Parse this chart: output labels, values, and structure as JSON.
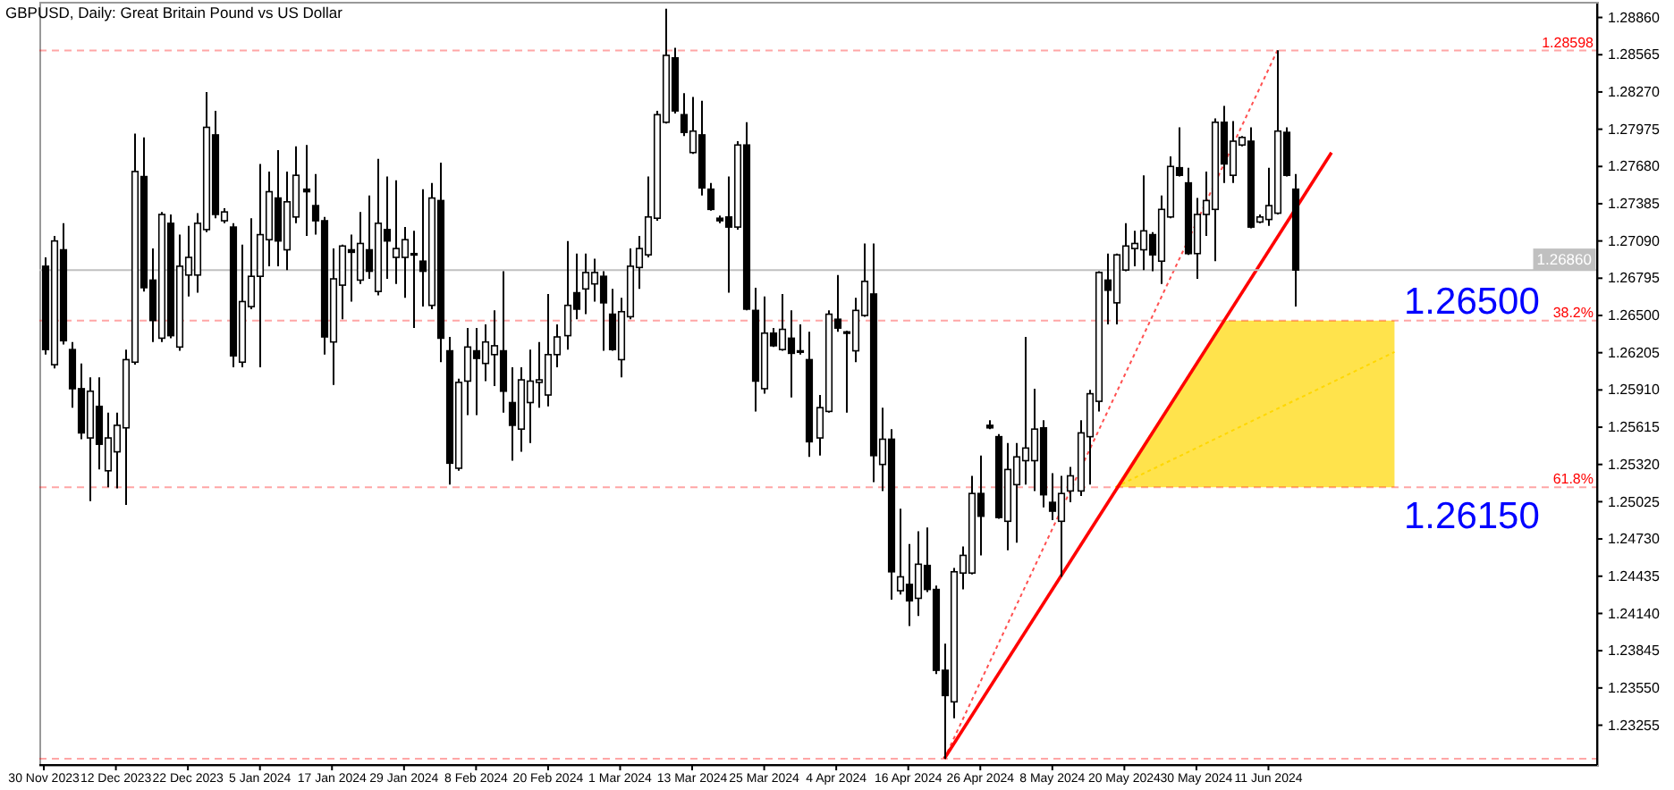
{
  "chart_data": {
    "type": "candlestick",
    "title": "GBPUSD, Daily: Great Britain Pound vs US Dollar",
    "categories": [
      "30 Nov 2023",
      null,
      null,
      null,
      null,
      null,
      null,
      null,
      "12 Dec 2023",
      null,
      null,
      null,
      null,
      null,
      null,
      null,
      "22 Dec 2023",
      null,
      null,
      null,
      null,
      null,
      null,
      null,
      "5 Jan 2024",
      null,
      null,
      null,
      null,
      null,
      null,
      null,
      "17 Jan 2024",
      null,
      null,
      null,
      null,
      null,
      null,
      null,
      "29 Jan 2024",
      null,
      null,
      null,
      null,
      null,
      null,
      null,
      "8 Feb 2024",
      null,
      null,
      null,
      null,
      null,
      null,
      null,
      "20 Feb 2024",
      null,
      null,
      null,
      null,
      null,
      null,
      null,
      "1 Mar 2024",
      null,
      null,
      null,
      null,
      null,
      null,
      null,
      "13 Mar 2024",
      null,
      null,
      null,
      null,
      null,
      null,
      null,
      "25 Mar 2024",
      null,
      null,
      null,
      null,
      null,
      null,
      null,
      "4 Apr 2024",
      null,
      null,
      null,
      null,
      null,
      null,
      null,
      "16 Apr 2024",
      null,
      null,
      null,
      null,
      null,
      null,
      null,
      "26 Apr 2024",
      null,
      null,
      null,
      null,
      null,
      null,
      null,
      "8 May 2024",
      null,
      null,
      null,
      null,
      null,
      null,
      null,
      "20 May 2024",
      null,
      null,
      null,
      null,
      null,
      null,
      null,
      "30 May 2024",
      null,
      null,
      null,
      null,
      null,
      null,
      null,
      "11 Jun 2024",
      null,
      null,
      null,
      null,
      null,
      null,
      null,
      null,
      null,
      null,
      null,
      null,
      null,
      null,
      null,
      null,
      null,
      null,
      null,
      null,
      null,
      null,
      null,
      null,
      null,
      null,
      null,
      null,
      null,
      null,
      null,
      null,
      null,
      null,
      null,
      null
    ],
    "ohlc": [
      [
        1.2689,
        1.2696,
        1.2619,
        1.2623
      ],
      [
        1.2611,
        1.2713,
        1.2608,
        1.2709
      ],
      [
        1.2702,
        1.2723,
        1.2627,
        1.263
      ],
      [
        1.2623,
        1.2629,
        1.2577,
        1.2592
      ],
      [
        1.2592,
        1.2612,
        1.2552,
        1.2557
      ],
      [
        1.2553,
        1.2601,
        1.2503,
        1.259
      ],
      [
        1.2578,
        1.2601,
        1.2528,
        1.2548
      ],
      [
        1.2527,
        1.2573,
        1.2514,
        1.2553
      ],
      [
        1.2542,
        1.2573,
        1.2513,
        1.2563
      ],
      [
        1.2561,
        1.2623,
        1.25,
        1.2615
      ],
      [
        1.2613,
        1.2794,
        1.2611,
        1.2764
      ],
      [
        1.276,
        1.2791,
        1.2669,
        1.2672
      ],
      [
        1.2678,
        1.2703,
        1.2629,
        1.2646
      ],
      [
        1.2632,
        1.2732,
        1.2629,
        1.273
      ],
      [
        1.2723,
        1.273,
        1.2632,
        1.2634
      ],
      [
        1.2625,
        1.2714,
        1.2622,
        1.2689
      ],
      [
        1.2682,
        1.2721,
        1.2665,
        1.2696
      ],
      [
        1.2682,
        1.2731,
        1.2668,
        1.2723
      ],
      [
        1.2718,
        1.2827,
        1.2716,
        1.2799
      ],
      [
        1.2793,
        1.2812,
        1.2727,
        1.273
      ],
      [
        1.2725,
        1.2735,
        1.2723,
        1.2732
      ],
      [
        1.272,
        1.2723,
        1.2609,
        1.2618
      ],
      [
        1.2613,
        1.2706,
        1.2609,
        1.2661
      ],
      [
        1.2657,
        1.2727,
        1.2655,
        1.2681
      ],
      [
        1.2681,
        1.277,
        1.2609,
        1.2714
      ],
      [
        1.271,
        1.2764,
        1.2689,
        1.2748
      ],
      [
        1.2743,
        1.2781,
        1.2689,
        1.2709
      ],
      [
        1.2702,
        1.2764,
        1.2686,
        1.274
      ],
      [
        1.2728,
        1.2784,
        1.2723,
        1.2761
      ],
      [
        1.275,
        1.2785,
        1.2713,
        1.2748
      ],
      [
        1.2737,
        1.2762,
        1.2714,
        1.2725
      ],
      [
        1.2725,
        1.2728,
        1.2619,
        1.2633
      ],
      [
        1.2629,
        1.2703,
        1.2595,
        1.2679
      ],
      [
        1.2674,
        1.2706,
        1.2647,
        1.2705
      ],
      [
        1.2702,
        1.2714,
        1.2661,
        1.27
      ],
      [
        1.2678,
        1.2732,
        1.2675,
        1.2707
      ],
      [
        1.2702,
        1.2745,
        1.2679,
        1.2685
      ],
      [
        1.2669,
        1.2774,
        1.2666,
        1.2723
      ],
      [
        1.2718,
        1.276,
        1.2679,
        1.2709
      ],
      [
        1.2696,
        1.2757,
        1.2675,
        1.2703
      ],
      [
        1.2696,
        1.272,
        1.2664,
        1.271
      ],
      [
        1.2699,
        1.2717,
        1.264,
        1.2698
      ],
      [
        1.2693,
        1.275,
        1.2657,
        1.2685
      ],
      [
        1.2658,
        1.2755,
        1.2655,
        1.2743
      ],
      [
        1.2741,
        1.2771,
        1.2613,
        1.2632
      ],
      [
        1.2622,
        1.2633,
        1.2516,
        1.2533
      ],
      [
        1.2529,
        1.26,
        1.2527,
        1.2597
      ],
      [
        1.2598,
        1.264,
        1.2571,
        1.2625
      ],
      [
        1.2622,
        1.264,
        1.2571,
        1.2616
      ],
      [
        1.2612,
        1.2643,
        1.2598,
        1.2629
      ],
      [
        1.2619,
        1.2654,
        1.2594,
        1.2626
      ],
      [
        1.2622,
        1.2685,
        1.2573,
        1.259
      ],
      [
        1.2581,
        1.2609,
        1.2535,
        1.2563
      ],
      [
        1.256,
        1.2609,
        1.2542,
        1.2599
      ],
      [
        1.2581,
        1.2623,
        1.2549,
        1.2598
      ],
      [
        1.2597,
        1.2629,
        1.2577,
        1.2599
      ],
      [
        1.2587,
        1.2667,
        1.2578,
        1.2619
      ],
      [
        1.2619,
        1.2643,
        1.2609,
        1.2633
      ],
      [
        1.2634,
        1.2709,
        1.2623,
        1.2658
      ],
      [
        1.2668,
        1.2699,
        1.2647,
        1.2655
      ],
      [
        1.2671,
        1.2699,
        1.2651,
        1.2684
      ],
      [
        1.2675,
        1.2695,
        1.2661,
        1.2684
      ],
      [
        1.2681,
        1.2685,
        1.2622,
        1.266
      ],
      [
        1.2651,
        1.2671,
        1.2622,
        1.2623
      ],
      [
        1.2615,
        1.2664,
        1.2601,
        1.2653
      ],
      [
        1.2649,
        1.2703,
        1.2647,
        1.2689
      ],
      [
        1.2688,
        1.2713,
        1.2671,
        1.2703
      ],
      [
        1.2698,
        1.276,
        1.2696,
        1.2728
      ],
      [
        1.2727,
        1.2812,
        1.2725,
        1.2809
      ],
      [
        1.2803,
        1.2893,
        1.2802,
        1.2856
      ],
      [
        1.2854,
        1.2862,
        1.281,
        1.2812
      ],
      [
        1.2809,
        1.2826,
        1.2792,
        1.2795
      ],
      [
        1.2779,
        1.2823,
        1.2778,
        1.2796
      ],
      [
        1.2793,
        1.282,
        1.2745,
        1.2751
      ],
      [
        1.275,
        1.2755,
        1.2733,
        1.2734
      ],
      [
        1.2727,
        1.2729,
        1.2723,
        1.2725
      ],
      [
        1.2728,
        1.276,
        1.2668,
        1.272
      ],
      [
        1.272,
        1.2788,
        1.2718,
        1.2785
      ],
      [
        1.2785,
        1.2803,
        1.2654,
        1.2655
      ],
      [
        1.2654,
        1.2672,
        1.2574,
        1.2598
      ],
      [
        1.2592,
        1.2665,
        1.2588,
        1.2636
      ],
      [
        1.2636,
        1.264,
        1.2625,
        1.2626
      ],
      [
        1.2623,
        1.2667,
        1.2622,
        1.2639
      ],
      [
        1.2632,
        1.2654,
        1.2585,
        1.262
      ],
      [
        1.2622,
        1.2643,
        1.2619,
        1.2621
      ],
      [
        1.2615,
        1.2637,
        1.2538,
        1.255
      ],
      [
        1.2553,
        1.2587,
        1.2539,
        1.2577
      ],
      [
        1.2574,
        1.2654,
        1.2573,
        1.2651
      ],
      [
        1.2647,
        1.2682,
        1.2637,
        1.264
      ],
      [
        1.2637,
        1.2638,
        1.2573,
        1.2636
      ],
      [
        1.2622,
        1.2664,
        1.2613,
        1.2654
      ],
      [
        1.265,
        1.2707,
        1.2649,
        1.2677
      ],
      [
        1.2667,
        1.2707,
        1.2518,
        1.2539
      ],
      [
        1.2532,
        1.2577,
        1.2511,
        1.2552
      ],
      [
        1.2552,
        1.256,
        1.2425,
        1.2447
      ],
      [
        1.2432,
        1.2497,
        1.2429,
        1.2443
      ],
      [
        1.2437,
        1.2469,
        1.2404,
        1.2424
      ],
      [
        1.2426,
        1.2479,
        1.2412,
        1.2453
      ],
      [
        1.2452,
        1.2482,
        1.2431,
        1.2433
      ],
      [
        1.2433,
        1.2436,
        1.2366,
        1.2369
      ],
      [
        1.2369,
        1.239,
        1.2299,
        1.2349
      ],
      [
        1.2344,
        1.245,
        1.2331,
        1.2447
      ],
      [
        1.2446,
        1.2467,
        1.2433,
        1.246
      ],
      [
        1.2446,
        1.2523,
        1.2445,
        1.2509
      ],
      [
        1.2509,
        1.2539,
        1.246,
        1.2491
      ],
      [
        1.2563,
        1.2567,
        1.256,
        1.2561
      ],
      [
        1.2554,
        1.2556,
        1.2489,
        1.249
      ],
      [
        1.2487,
        1.2549,
        1.2464,
        1.2528
      ],
      [
        1.2516,
        1.2549,
        1.247,
        1.2538
      ],
      [
        1.2535,
        1.2633,
        1.2516,
        1.2545
      ],
      [
        1.2535,
        1.2592,
        1.2511,
        1.256
      ],
      [
        1.2561,
        1.2567,
        1.2498,
        1.2508
      ],
      [
        1.2502,
        1.2525,
        1.2488,
        1.2495
      ],
      [
        1.2487,
        1.2523,
        1.2443,
        1.2509
      ],
      [
        1.2511,
        1.253,
        1.2502,
        1.2523
      ],
      [
        1.2511,
        1.2567,
        1.2507,
        1.2557
      ],
      [
        1.2554,
        1.2591,
        1.2516,
        1.2588
      ],
      [
        1.2582,
        1.2685,
        1.2574,
        1.2684
      ],
      [
        1.2678,
        1.2699,
        1.2643,
        1.267
      ],
      [
        1.266,
        1.2699,
        1.2643,
        1.2698
      ],
      [
        1.2686,
        1.2723,
        1.2685,
        1.2705
      ],
      [
        1.2703,
        1.2717,
        1.2689,
        1.2707
      ],
      [
        1.2702,
        1.2761,
        1.2686,
        1.2717
      ],
      [
        1.2714,
        1.2716,
        1.2685,
        1.2698
      ],
      [
        1.2693,
        1.2745,
        1.2675,
        1.2734
      ],
      [
        1.2728,
        1.2776,
        1.2727,
        1.2768
      ],
      [
        1.2767,
        1.2799,
        1.276,
        1.2761
      ],
      [
        1.2755,
        1.2767,
        1.2698,
        1.2699
      ],
      [
        1.2699,
        1.2743,
        1.2679,
        1.273
      ],
      [
        1.273,
        1.2764,
        1.2713,
        1.2741
      ],
      [
        1.2734,
        1.2806,
        1.2693,
        1.2803
      ],
      [
        1.2803,
        1.2816,
        1.2755,
        1.277
      ],
      [
        1.2761,
        1.2804,
        1.2755,
        1.2788
      ],
      [
        1.2785,
        1.2792,
        1.2784,
        1.2791
      ],
      [
        1.2788,
        1.2799,
        1.2719,
        1.272
      ],
      [
        1.2724,
        1.273,
        1.2723,
        1.2728
      ],
      [
        1.2726,
        1.2767,
        1.2721,
        1.2737
      ],
      [
        1.2731,
        1.286,
        1.273,
        1.2796
      ],
      [
        1.2795,
        1.2799,
        1.276,
        1.2761
      ],
      [
        1.275,
        1.2762,
        1.2657,
        1.2686
      ],
      null,
      null,
      null,
      null,
      null,
      null,
      null,
      null,
      null,
      null,
      null,
      null,
      null,
      null,
      null,
      null,
      null,
      null,
      null,
      null,
      null,
      null,
      null,
      null,
      null,
      null,
      null,
      null,
      null,
      null,
      null,
      null,
      null
    ],
    "series": [
      {
        "type": "line",
        "color": "#ffd700",
        "line_style": "dotted",
        "upper": [
          null,
          null,
          null,
          null,
          null,
          null,
          null,
          null,
          null,
          null,
          null,
          null,
          null,
          null,
          null,
          null,
          null,
          null,
          null,
          null,
          null,
          null,
          null,
          null,
          null,
          null,
          null,
          null,
          null,
          null,
          null,
          null,
          null,
          null,
          null,
          null,
          null,
          null,
          null,
          null,
          null,
          null,
          null,
          null,
          null,
          null,
          null,
          null,
          null,
          null,
          null,
          null,
          null,
          null,
          null,
          null,
          null,
          null,
          null,
          null,
          null,
          null,
          null,
          null,
          null,
          null,
          null,
          null,
          null,
          null,
          null,
          null,
          null,
          null,
          null,
          null,
          null,
          null,
          null,
          null,
          null,
          null,
          null,
          null,
          null,
          null,
          null,
          null,
          null,
          null,
          null,
          null,
          null,
          null,
          null,
          null,
          null,
          null,
          null,
          null,
          null,
          null,
          null,
          null,
          null,
          null,
          null,
          null,
          null,
          null,
          null,
          null,
          null,
          null,
          null,
          null,
          null,
          null,
          null,
          1.2514,
          null,
          null,
          null,
          null,
          null,
          null,
          null,
          null,
          null,
          null,
          null,
          1.2646,
          null,
          null,
          null,
          null,
          null,
          null,
          null,
          null,
          null,
          null,
          null,
          null,
          null,
          null,
          null,
          null,
          null,
          null,
          1.2646,
          null,
          null,
          null,
          null,
          null,
          null,
          null,
          null,
          null,
          null,
          null,
          null,
          null,
          null,
          null,
          null,
          null,
          null,
          null,
          null,
          null,
          null
        ],
        "lower": [
          null,
          null,
          null,
          null,
          null,
          null,
          null,
          null,
          null,
          null,
          null,
          null,
          null,
          null,
          null,
          null,
          null,
          null,
          null,
          null,
          null,
          null,
          null,
          null,
          null,
          null,
          null,
          null,
          null,
          null,
          null,
          null,
          null,
          null,
          null,
          null,
          null,
          null,
          null,
          null,
          null,
          null,
          null,
          null,
          null,
          null,
          null,
          null,
          null,
          null,
          null,
          null,
          null,
          null,
          null,
          null,
          null,
          null,
          null,
          null,
          null,
          null,
          null,
          null,
          null,
          null,
          null,
          null,
          null,
          null,
          null,
          null,
          null,
          null,
          null,
          null,
          null,
          null,
          null,
          null,
          null,
          null,
          null,
          null,
          null,
          null,
          null,
          null,
          null,
          null,
          null,
          null,
          null,
          null,
          null,
          null,
          null,
          null,
          null,
          null,
          null,
          null,
          null,
          null,
          null,
          null,
          null,
          null,
          null,
          null,
          null,
          null,
          null,
          null,
          null,
          null,
          null,
          null,
          null,
          1.2514,
          null,
          null,
          null,
          null,
          null,
          null,
          null,
          null,
          null,
          null,
          null,
          1.2514,
          null,
          null,
          null,
          null,
          null,
          null,
          null,
          null,
          null,
          null,
          null,
          null,
          null,
          null,
          null,
          null,
          null,
          null,
          1.2514,
          null,
          null,
          null,
          null,
          null,
          null,
          null,
          null,
          null,
          null,
          null,
          null,
          null,
          null,
          null,
          null,
          null,
          null,
          null,
          null,
          null,
          null
        ],
        "values": [
          null,
          null,
          null,
          null,
          null,
          null,
          null,
          null,
          null,
          null,
          null,
          null,
          null,
          null,
          null,
          null,
          null,
          null,
          null,
          null,
          null,
          null,
          null,
          null,
          null,
          null,
          null,
          null,
          null,
          null,
          null,
          null,
          null,
          null,
          null,
          null,
          null,
          null,
          null,
          null,
          null,
          null,
          null,
          null,
          null,
          null,
          null,
          null,
          null,
          null,
          null,
          null,
          null,
          null,
          null,
          null,
          null,
          null,
          null,
          null,
          null,
          null,
          null,
          null,
          null,
          null,
          null,
          null,
          null,
          null,
          null,
          null,
          null,
          null,
          null,
          null,
          null,
          null,
          null,
          null,
          null,
          null,
          null,
          null,
          null,
          null,
          null,
          null,
          null,
          null,
          null,
          null,
          null,
          null,
          null,
          null,
          null,
          null,
          null,
          null,
          null,
          null,
          null,
          null,
          null,
          null,
          null,
          null,
          null,
          null,
          null,
          null,
          null,
          null,
          null,
          null,
          null,
          null,
          null,
          1.2514,
          null,
          null,
          null,
          null,
          null,
          null,
          null,
          null,
          null,
          null,
          null,
          null,
          null,
          null,
          null,
          null,
          null,
          null,
          null,
          null,
          null,
          null,
          null,
          null,
          null,
          null,
          null,
          null,
          null,
          null,
          1.2621,
          null,
          null,
          null,
          null,
          null,
          null,
          null,
          null,
          null,
          null,
          null,
          null,
          null,
          null,
          null,
          null,
          null,
          null,
          null,
          null,
          null,
          null
        ]
      },
      {
        "type": "line",
        "color": "#ff5050",
        "line_style": "dotted",
        "values": [
          null,
          null,
          null,
          null,
          null,
          null,
          null,
          null,
          null,
          null,
          null,
          null,
          null,
          null,
          null,
          null,
          null,
          null,
          null,
          null,
          null,
          null,
          null,
          null,
          null,
          null,
          null,
          null,
          null,
          null,
          null,
          null,
          null,
          null,
          null,
          null,
          null,
          null,
          null,
          null,
          null,
          null,
          null,
          null,
          null,
          null,
          null,
          null,
          null,
          null,
          null,
          null,
          null,
          null,
          null,
          null,
          null,
          null,
          null,
          null,
          null,
          null,
          null,
          null,
          null,
          null,
          null,
          null,
          null,
          null,
          null,
          null,
          null,
          null,
          null,
          null,
          null,
          null,
          null,
          null,
          null,
          null,
          null,
          null,
          null,
          null,
          null,
          null,
          null,
          null,
          null,
          null,
          null,
          null,
          null,
          null,
          null,
          null,
          null,
          null,
          1.2299,
          null,
          null,
          null,
          null,
          null,
          null,
          null,
          null,
          null,
          null,
          null,
          null,
          null,
          null,
          null,
          null,
          null,
          null,
          null,
          null,
          null,
          null,
          null,
          null,
          null,
          null,
          null,
          null,
          null,
          null,
          null,
          null,
          null,
          null,
          null,
          null,
          1.286,
          null,
          null,
          null,
          null,
          null,
          null,
          null,
          null,
          null,
          null,
          null,
          null,
          null,
          null,
          null,
          null,
          null,
          null,
          null,
          null,
          null,
          null,
          null,
          null,
          null,
          null,
          null,
          null,
          null,
          null,
          null,
          null,
          null,
          null,
          null
        ]
      },
      {
        "type": "line",
        "color": "#ff0000",
        "line_style": "solid",
        "values": [
          null,
          null,
          null,
          null,
          null,
          null,
          null,
          null,
          null,
          null,
          null,
          null,
          null,
          null,
          null,
          null,
          null,
          null,
          null,
          null,
          null,
          null,
          null,
          null,
          null,
          null,
          null,
          null,
          null,
          null,
          null,
          null,
          null,
          null,
          null,
          null,
          null,
          null,
          null,
          null,
          null,
          null,
          null,
          null,
          null,
          null,
          null,
          null,
          null,
          null,
          null,
          null,
          null,
          null,
          null,
          null,
          null,
          null,
          null,
          null,
          null,
          null,
          null,
          null,
          null,
          null,
          null,
          null,
          null,
          null,
          null,
          null,
          null,
          null,
          null,
          null,
          null,
          null,
          null,
          null,
          null,
          null,
          null,
          null,
          null,
          null,
          null,
          null,
          null,
          null,
          null,
          null,
          null,
          null,
          null,
          null,
          null,
          null,
          null,
          null,
          1.2299,
          null,
          null,
          null,
          null,
          null,
          null,
          null,
          null,
          null,
          null,
          null,
          null,
          null,
          null,
          null,
          null,
          null,
          null,
          null,
          null,
          null,
          null,
          null,
          null,
          null,
          null,
          null,
          null,
          null,
          null,
          null,
          null,
          null,
          null,
          null,
          null,
          null,
          null,
          null,
          null,
          null,
          null,
          1.2779,
          null,
          null,
          null,
          null,
          null,
          null,
          null,
          null,
          null,
          null,
          null,
          null,
          null,
          null,
          null,
          null,
          null,
          null,
          null,
          null,
          null,
          null,
          null,
          null,
          null,
          null,
          null,
          null,
          null
        ]
      }
    ],
    "ylim": [
      1.2294,
      1.2897
    ],
    "yticks": [
      {
        "value": 1.2886,
        "label": "1.28860"
      },
      {
        "value": 1.28565,
        "label": "1.28565"
      },
      {
        "value": 1.2827,
        "label": "1.28270"
      },
      {
        "value": 1.27975,
        "label": "1.27975"
      },
      {
        "value": 1.2768,
        "label": "1.27680"
      },
      {
        "value": 1.27385,
        "label": "1.27385"
      },
      {
        "value": 1.2709,
        "label": "1.27090"
      },
      {
        "value": 1.26795,
        "label": "1.26795"
      },
      {
        "value": 1.265,
        "label": "1.26500"
      },
      {
        "value": 1.26205,
        "label": "1.26205"
      },
      {
        "value": 1.2591,
        "label": "1.25910"
      },
      {
        "value": 1.25615,
        "label": "1.25615"
      },
      {
        "value": 1.2532,
        "label": "1.25320"
      },
      {
        "value": 1.25025,
        "label": "1.25025"
      },
      {
        "value": 1.2473,
        "label": "1.24730"
      },
      {
        "value": 1.24435,
        "label": "1.24435"
      },
      {
        "value": 1.2414,
        "label": "1.24140"
      },
      {
        "value": 1.23845,
        "label": "1.23845"
      },
      {
        "value": 1.2355,
        "label": "1.23550"
      },
      {
        "value": 1.23255,
        "label": "1.23255"
      }
    ],
    "ref_lines": [
      {
        "axis": "y",
        "value": 1.28598,
        "label": "1.28598",
        "color": "#ff0000",
        "line_style": "dashed"
      },
      {
        "axis": "y",
        "value": 1.2646,
        "color": "#ff0000",
        "line_style": "dashed"
      },
      {
        "axis": "y",
        "value": 1.2514,
        "color": "#ff0000",
        "line_style": "dashed"
      },
      {
        "axis": "y",
        "value": 1.2299,
        "color": "#ff0000",
        "line_style": "dashed"
      },
      {
        "axis": "y",
        "value": 1.2686,
        "label": "1.26860",
        "color": "#c0c0c0",
        "line_style": "solid"
      }
    ],
    "annotations": [
      {
        "text": "1.26500",
        "y": 1.2646
      },
      {
        "text": "1.26150",
        "y": 1.2514
      },
      {
        "text": "38.2%",
        "y": 1.2646
      },
      {
        "text": "61.8%",
        "y": 1.2514
      }
    ]
  }
}
